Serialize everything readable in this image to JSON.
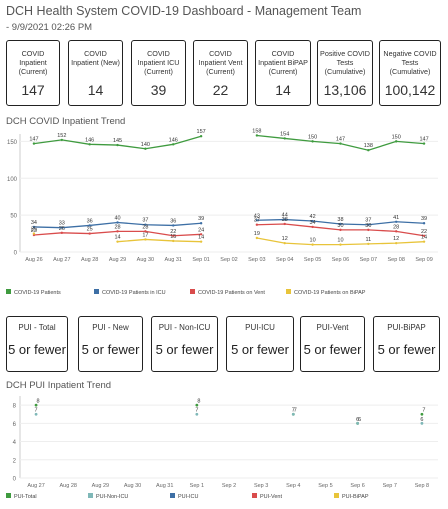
{
  "header": {
    "title": "DCH Health System COVID-19 Dashboard - Management Team",
    "date": " - 9/9/2021 02:26 PM"
  },
  "kpis": [
    {
      "label": "COVID Inpatient (Current)",
      "value": "147"
    },
    {
      "label": "COVID Inpatient (New)",
      "value": "14"
    },
    {
      "label": "COVID Inpatient ICU (Current)",
      "value": "39"
    },
    {
      "label": "COVID Inpatient Vent (Current)",
      "value": "22"
    },
    {
      "label": "COVID Inpatient BiPAP (Current)",
      "value": "14"
    },
    {
      "label": "Positive COVID Tests (Cumulative)",
      "value": "13,106"
    },
    {
      "label": "Negative COVID Tests (Cumulative)",
      "value": "100,142"
    }
  ],
  "sections": {
    "inpatient_trend": "DCH COVID Inpatient Trend",
    "pui_trend": "DCH PUI Inpatient Trend"
  },
  "pui_cards": [
    {
      "label": "PUI - Total",
      "value": "5 or fewer"
    },
    {
      "label": "PUI - New",
      "value": "5 or fewer"
    },
    {
      "label": "PUI - Non-ICU",
      "value": "5 or fewer"
    },
    {
      "label": "PUI-ICU",
      "value": "5 or fewer"
    },
    {
      "label": "PUI-Vent",
      "value": "5 or fewer"
    },
    {
      "label": "PUI-BiPAP",
      "value": "5 or fewer"
    }
  ],
  "chart_data": [
    {
      "type": "line",
      "title": "DCH COVID Inpatient Trend",
      "categories": [
        "Aug 26",
        "Aug 27",
        "Aug 28",
        "Aug 29",
        "Aug 30",
        "Aug 31",
        "Sep 01",
        "Sep 02",
        "Sep 03",
        "Sep 04",
        "Sep 05",
        "Sep 06",
        "Sep 07",
        "Sep 08",
        "Sep 09"
      ],
      "yticks": [
        0,
        50,
        100,
        150
      ],
      "ylim": [
        0,
        160
      ],
      "series": [
        {
          "name": "COVID-19 Patients",
          "color": "#3f9b3f",
          "values": [
            147,
            152,
            146,
            145,
            140,
            146,
            157,
            null,
            158,
            154,
            150,
            147,
            138,
            150,
            147
          ]
        },
        {
          "name": "COVID-19 Patients in ICU",
          "color": "#3d6fa5",
          "values": [
            34,
            33,
            36,
            40,
            37,
            36,
            39,
            null,
            43,
            44,
            42,
            38,
            37,
            41,
            39
          ]
        },
        {
          "name": "COVID-19 Patients on Vent",
          "color": "#d94c4c",
          "values": [
            23,
            26,
            25,
            28,
            28,
            22,
            24,
            null,
            37,
            38,
            34,
            30,
            30,
            28,
            22
          ]
        },
        {
          "name": "COVID-19 Patients on BiPAP",
          "color": "#e8c43a",
          "values": [
            25,
            null,
            null,
            14,
            17,
            15,
            14,
            null,
            19,
            12,
            10,
            10,
            11,
            12,
            14
          ]
        }
      ],
      "value_labels": {
        "COVID-19 Patients": [
          "147",
          "152",
          "146",
          "145",
          "140",
          "146",
          "157",
          null,
          "158",
          "154",
          "150",
          "147",
          "138",
          "150",
          "147"
        ],
        "COVID-19 Patients in ICU": [
          "34",
          "33",
          "36",
          "40",
          "37",
          "36",
          "39",
          null,
          "43",
          "44",
          "42",
          "38",
          "37",
          "41",
          "39"
        ],
        "COVID-19 Patients on Vent": [
          "23",
          "26",
          "25",
          "28",
          "28",
          "22",
          "24",
          null,
          "37",
          "38",
          "34",
          "30",
          "30",
          "28",
          "22"
        ],
        "COVID-19 Patients on BiPAP": [
          "25",
          null,
          null,
          "14",
          "17",
          "15",
          "14",
          null,
          "19",
          "12",
          "10",
          "10",
          "11",
          "12",
          "14"
        ]
      },
      "legend": "bottom"
    },
    {
      "type": "scatter",
      "title": "DCH PUI Inpatient Trend",
      "categories": [
        "Aug 27",
        "Aug 28",
        "Aug 29",
        "Aug 30",
        "Aug 31",
        "Sep 1",
        "Sep 2",
        "Sep 3",
        "Sep 4",
        "Sep 5",
        "Sep 6",
        "Sep 7",
        "Sep 8"
      ],
      "yticks": [
        0,
        2,
        4,
        6,
        8
      ],
      "ylim": [
        0,
        9
      ],
      "series": [
        {
          "name": "PUI-Total",
          "color": "#3f9b3f",
          "values": [
            8,
            null,
            null,
            null,
            null,
            8,
            null,
            null,
            7,
            null,
            6,
            null,
            7
          ]
        },
        {
          "name": "PUI-Non-ICU",
          "color": "#7fb8b8",
          "values": [
            7,
            null,
            null,
            null,
            null,
            7,
            null,
            null,
            7,
            null,
            6,
            null,
            6
          ]
        },
        {
          "name": "PUI-ICU",
          "color": "#3d6fa5",
          "values": [
            null,
            null,
            null,
            null,
            null,
            null,
            null,
            null,
            null,
            null,
            null,
            null,
            null
          ]
        },
        {
          "name": "PUI-Vent",
          "color": "#d94c4c",
          "values": [
            null,
            null,
            null,
            null,
            null,
            null,
            null,
            null,
            null,
            null,
            null,
            null,
            null
          ]
        },
        {
          "name": "PUI-BiPAP",
          "color": "#e8c43a",
          "values": [
            null,
            null,
            null,
            null,
            null,
            null,
            null,
            null,
            null,
            null,
            null,
            null,
            null
          ]
        }
      ],
      "legend": "bottom"
    }
  ]
}
